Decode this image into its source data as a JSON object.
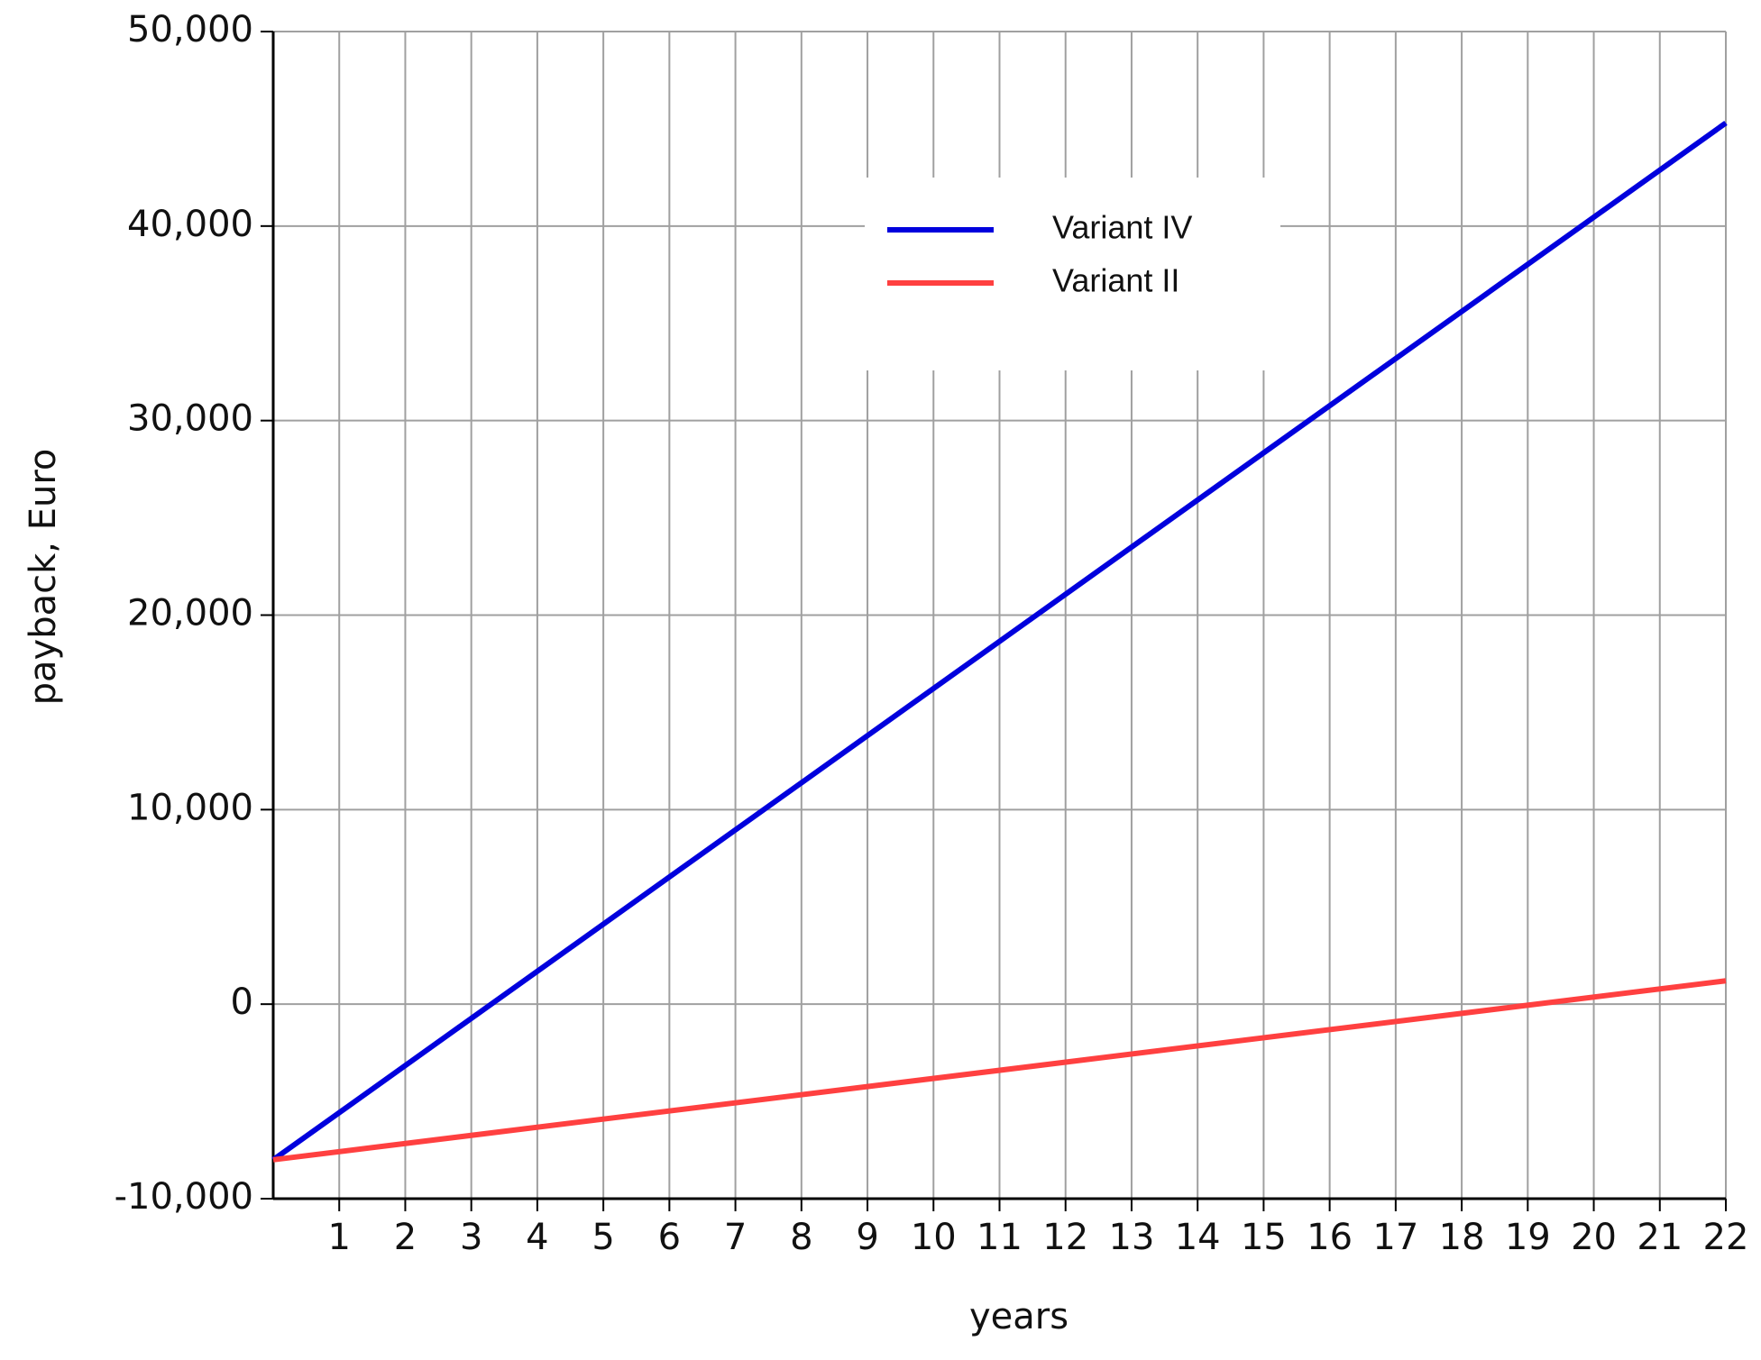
{
  "chart_data": {
    "type": "line",
    "x_label": "years",
    "y_label": "payback, Euro",
    "x": [
      0,
      22
    ],
    "series": [
      {
        "name": "Variant IV",
        "color": "#0000dd",
        "values": [
          -8000,
          45300
        ]
      },
      {
        "name": "Variant II",
        "color": "#ff4040",
        "values": [
          -8000,
          1200
        ]
      }
    ],
    "xlim": [
      0,
      22
    ],
    "xticks": [
      1,
      2,
      3,
      4,
      5,
      6,
      7,
      8,
      9,
      10,
      11,
      12,
      13,
      14,
      15,
      16,
      17,
      18,
      19,
      20,
      21,
      22
    ],
    "ylim": [
      -10000,
      50000
    ],
    "yticks": [
      {
        "value": -10000,
        "label": "-10,000"
      },
      0,
      {
        "value": 10000,
        "label": "10,000"
      },
      {
        "value": 20000,
        "label": "20,000"
      },
      {
        "value": 30000,
        "label": "30,000"
      },
      {
        "value": 40000,
        "label": "40,000"
      },
      {
        "value": 50000,
        "label": "50,000"
      }
    ],
    "grid": true,
    "legend": "upper center"
  }
}
